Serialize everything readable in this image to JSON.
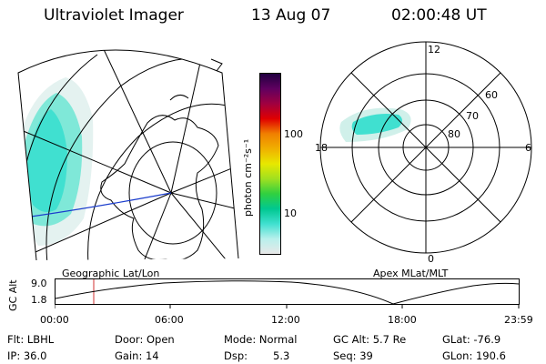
{
  "header": {
    "title": "Ultraviolet Imager",
    "date": "13 Aug 07",
    "time": "02:00:48 UT"
  },
  "colorbar": {
    "ticks": [
      "100",
      "10"
    ],
    "unit_label": "photon cm⁻²s⁻¹",
    "colors": [
      "#e8e8e8",
      "#b8f0ec",
      "#40e0d0",
      "#00c890",
      "#30d040",
      "#a0e020",
      "#e8e800",
      "#f0b000",
      "#f08000",
      "#e00000",
      "#a00040",
      "#600060",
      "#200040"
    ]
  },
  "geo_map": {
    "caption": "Geographic Lat/Lon"
  },
  "polar_plot": {
    "caption": "Apex MLat/MLT",
    "mlt_labels": [
      "12",
      "18",
      "6",
      "0"
    ],
    "lat_labels": [
      "60",
      "70",
      "80"
    ]
  },
  "altitude_strip": {
    "ylabel": "GC Alt",
    "yticks": [
      "9.0",
      "1.8"
    ],
    "xticks": [
      "00:00",
      "06:00",
      "12:00",
      "18:00",
      "23:59"
    ],
    "marker_color": "#d03030",
    "curve_color": "#000000"
  },
  "info": {
    "flt": "Flt: LBHL",
    "ip": "IP: 36.0",
    "door": "Door: Open",
    "gain": "Gain: 14",
    "mode": "Mode: Normal",
    "dsp_label": "Dsp:",
    "dsp_value": "5.3",
    "gcalt": "GC Alt: 5.7 Re",
    "seq": "Seq: 39",
    "glat": "GLat: -76.9",
    "glon": "GLon: 190.6"
  }
}
